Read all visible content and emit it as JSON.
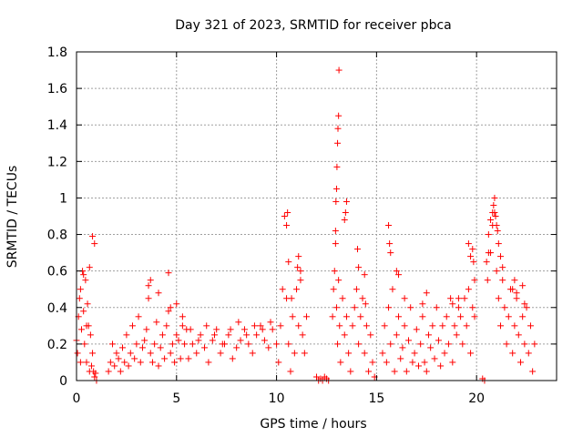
{
  "chart_data": {
    "type": "scatter",
    "title": "Day 321 of 2023, SRMTID for receiver pbca",
    "xlabel": "GPS time / hours",
    "ylabel": "SRMTID / TECUs",
    "xlim": [
      0,
      24
    ],
    "ylim": [
      0,
      1.8
    ],
    "xticks": [
      0,
      5,
      10,
      15,
      20
    ],
    "xtick_labels": [
      "0",
      "5",
      "10",
      "15",
      "20"
    ],
    "yticks": [
      0,
      0.2,
      0.4,
      0.6,
      0.8,
      1.0,
      1.2,
      1.4,
      1.6,
      1.8
    ],
    "ytick_labels": [
      "0",
      "0.2",
      "0.4",
      "0.6",
      "0.8",
      "1",
      "1.2",
      "1.4",
      "1.6",
      "1.8"
    ],
    "grid": true,
    "marker": "+",
    "color": "#ff0000",
    "series": [
      {
        "name": "SRMTID",
        "x": [
          0.0,
          0.05,
          0.1,
          0.15,
          0.2,
          0.25,
          0.3,
          0.35,
          0.4,
          0.45,
          0.5,
          0.55,
          0.6,
          0.65,
          0.7,
          0.75,
          0.8,
          0.85,
          0.9,
          0.95,
          1.0,
          0.2,
          0.35,
          0.5,
          0.65,
          0.8,
          0.9,
          1.6,
          1.7,
          1.8,
          1.9,
          2.0,
          2.1,
          2.2,
          2.3,
          2.4,
          2.5,
          2.6,
          2.7,
          2.8,
          2.9,
          3.0,
          3.1,
          3.2,
          3.3,
          3.4,
          3.5,
          3.6,
          3.7,
          3.8,
          3.9,
          4.0,
          4.1,
          4.2,
          4.3,
          4.4,
          4.5,
          4.6,
          4.7,
          4.8,
          4.9,
          5.0,
          5.1,
          5.2,
          5.3,
          5.4,
          5.5,
          3.6,
          3.7,
          4.1,
          4.6,
          4.7,
          5.0,
          5.3,
          5.6,
          5.8,
          6.0,
          6.2,
          6.4,
          6.6,
          6.8,
          7.0,
          7.2,
          7.4,
          7.6,
          7.8,
          8.0,
          8.2,
          8.4,
          8.6,
          8.8,
          9.0,
          9.2,
          9.4,
          9.6,
          9.8,
          10.0,
          5.7,
          6.1,
          6.5,
          6.9,
          7.3,
          7.7,
          8.1,
          8.5,
          8.9,
          9.3,
          9.7,
          10.1,
          10.2,
          10.3,
          10.4,
          10.5,
          10.6,
          10.7,
          10.8,
          10.9,
          11.0,
          11.1,
          11.2,
          11.3,
          11.4,
          11.5,
          10.5,
          10.55,
          10.6,
          10.75,
          11.05,
          11.1,
          11.2,
          12.0,
          12.1,
          12.2,
          12.3,
          12.4,
          12.5,
          12.6,
          12.8,
          12.85,
          12.9,
          12.95,
          13.0,
          13.05,
          13.1,
          13.15,
          13.2,
          13.3,
          13.4,
          13.5,
          13.6,
          13.7,
          13.8,
          13.9,
          14.0,
          14.1,
          14.2,
          14.3,
          14.4,
          14.5,
          14.6,
          14.7,
          14.8,
          14.9,
          12.95,
          12.97,
          13.0,
          13.02,
          13.05,
          13.07,
          13.1,
          13.12,
          13.4,
          13.45,
          13.5,
          14.05,
          14.1,
          14.4,
          14.45,
          15.3,
          15.4,
          15.5,
          15.6,
          15.7,
          15.8,
          15.9,
          16.0,
          16.1,
          16.2,
          16.3,
          16.4,
          16.5,
          16.6,
          16.7,
          16.8,
          16.9,
          17.0,
          17.1,
          17.2,
          17.3,
          17.4,
          17.5,
          17.6,
          17.7,
          17.8,
          17.9,
          18.0,
          18.1,
          18.2,
          18.3,
          18.4,
          18.5,
          18.6,
          18.7,
          18.8,
          18.9,
          19.0,
          19.1,
          19.2,
          19.3,
          19.4,
          19.5,
          19.6,
          19.7,
          19.8,
          19.9,
          15.6,
          15.65,
          15.7,
          16.0,
          16.1,
          16.4,
          17.3,
          17.5,
          18.8,
          19.1,
          19.6,
          19.7,
          19.8,
          19.85,
          19.9,
          20.3,
          20.4,
          20.5,
          20.6,
          20.7,
          20.8,
          20.9,
          21.0,
          21.1,
          21.2,
          21.3,
          21.4,
          21.5,
          21.6,
          21.7,
          21.8,
          21.9,
          22.0,
          22.1,
          22.2,
          22.3,
          22.4,
          22.5,
          22.6,
          22.7,
          22.8,
          22.9,
          20.55,
          20.6,
          20.7,
          20.8,
          20.85,
          20.9,
          20.95,
          21.0,
          21.05,
          21.1,
          21.2,
          21.3,
          21.8,
          21.9,
          22.0,
          22.3,
          22.4
        ],
        "y": [
          0.22,
          0.15,
          0.35,
          0.45,
          0.5,
          0.28,
          0.6,
          0.38,
          0.2,
          0.55,
          0.1,
          0.42,
          0.3,
          0.05,
          0.25,
          0.08,
          0.15,
          0.05,
          0.02,
          0.04,
          0.0,
          0.1,
          0.58,
          0.3,
          0.62,
          0.79,
          0.75,
          0.05,
          0.1,
          0.2,
          0.08,
          0.15,
          0.12,
          0.05,
          0.18,
          0.1,
          0.25,
          0.08,
          0.15,
          0.3,
          0.12,
          0.2,
          0.35,
          0.1,
          0.18,
          0.22,
          0.28,
          0.45,
          0.15,
          0.1,
          0.2,
          0.32,
          0.08,
          0.18,
          0.25,
          0.12,
          0.3,
          0.38,
          0.15,
          0.2,
          0.1,
          0.25,
          0.22,
          0.12,
          0.3,
          0.2,
          0.28,
          0.52,
          0.55,
          0.48,
          0.59,
          0.4,
          0.42,
          0.35,
          0.12,
          0.2,
          0.15,
          0.25,
          0.18,
          0.1,
          0.22,
          0.28,
          0.15,
          0.2,
          0.25,
          0.12,
          0.18,
          0.22,
          0.28,
          0.2,
          0.15,
          0.25,
          0.3,
          0.22,
          0.18,
          0.28,
          0.2,
          0.28,
          0.22,
          0.3,
          0.25,
          0.2,
          0.28,
          0.32,
          0.25,
          0.3,
          0.28,
          0.32,
          0.1,
          0.3,
          0.5,
          0.9,
          0.45,
          0.2,
          0.05,
          0.35,
          0.15,
          0.5,
          0.3,
          0.6,
          0.25,
          0.15,
          0.35,
          0.85,
          0.92,
          0.65,
          0.45,
          0.62,
          0.68,
          0.55,
          0.02,
          0.0,
          0.01,
          0.0,
          0.02,
          0.01,
          0.0,
          0.35,
          0.5,
          0.6,
          0.75,
          0.4,
          0.2,
          0.55,
          0.3,
          0.1,
          0.45,
          0.25,
          0.35,
          0.15,
          0.05,
          0.3,
          0.4,
          0.5,
          0.2,
          0.35,
          0.45,
          0.15,
          0.3,
          0.05,
          0.25,
          0.1,
          0.02,
          0.82,
          0.98,
          1.05,
          1.17,
          1.3,
          1.38,
          1.45,
          1.7,
          0.88,
          0.92,
          0.98,
          0.72,
          0.62,
          0.58,
          0.42,
          0.15,
          0.3,
          0.1,
          0.4,
          0.2,
          0.5,
          0.05,
          0.25,
          0.35,
          0.12,
          0.18,
          0.3,
          0.05,
          0.22,
          0.4,
          0.1,
          0.15,
          0.28,
          0.08,
          0.2,
          0.35,
          0.1,
          0.05,
          0.25,
          0.18,
          0.3,
          0.12,
          0.4,
          0.22,
          0.08,
          0.3,
          0.15,
          0.35,
          0.2,
          0.45,
          0.1,
          0.3,
          0.25,
          0.4,
          0.35,
          0.2,
          0.45,
          0.3,
          0.5,
          0.15,
          0.4,
          0.35,
          0.85,
          0.75,
          0.7,
          0.6,
          0.58,
          0.45,
          0.42,
          0.48,
          0.42,
          0.45,
          0.75,
          0.68,
          0.72,
          0.65,
          0.55,
          0.01,
          0.0,
          0.65,
          0.8,
          0.7,
          0.85,
          0.92,
          0.6,
          0.45,
          0.3,
          0.55,
          0.4,
          0.2,
          0.35,
          0.5,
          0.15,
          0.3,
          0.45,
          0.25,
          0.1,
          0.35,
          0.2,
          0.4,
          0.15,
          0.3,
          0.05,
          0.2,
          0.55,
          0.7,
          0.88,
          0.92,
          0.96,
          1.0,
          0.9,
          0.85,
          0.82,
          0.75,
          0.68,
          0.62,
          0.5,
          0.55,
          0.48,
          0.52,
          0.42
        ]
      }
    ]
  }
}
